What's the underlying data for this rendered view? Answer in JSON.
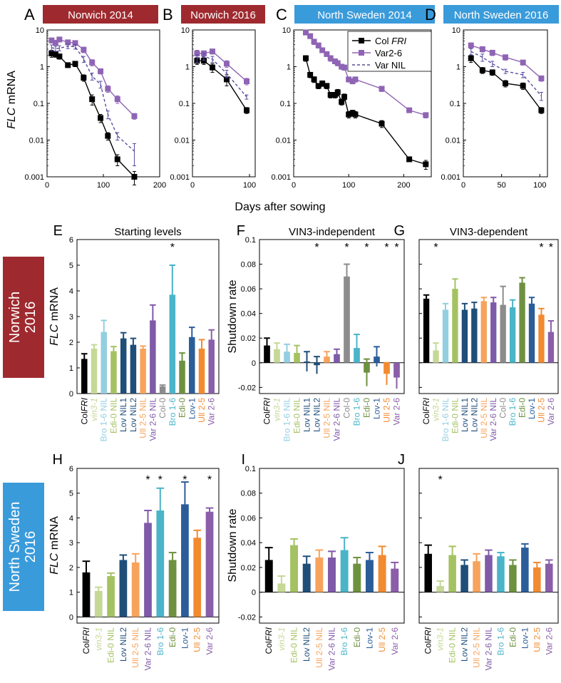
{
  "colors": {
    "dark_red": "#9e2a2f",
    "blue": "#3a9bdb",
    "black": "#000000",
    "col_fri": "#000000",
    "var26": "#8f64b5",
    "varnil": "#5a4b9e",
    "vin3": "#c5d896",
    "bro16nil": "#93cfe0",
    "edi0nil": "#a5c263",
    "lovnil": "#1f4e79",
    "ull25nil": "#f7a35c",
    "var26nil": "#7f5aa8",
    "col0": "#8c8c8c",
    "bro16": "#4ab4c9",
    "edi0": "#6e9140",
    "lov1": "#2b5d99",
    "ull25": "#f28a30",
    "var26bar": "#8a5ea9"
  },
  "panels_top": [
    {
      "id": "A",
      "header": "Norwich 2014",
      "header_color": "dark_red"
    },
    {
      "id": "B",
      "header": "Norwich 2016",
      "header_color": "dark_red"
    },
    {
      "id": "C",
      "header": "North Sweden 2014",
      "header_color": "blue"
    },
    {
      "id": "D",
      "header": "North Sweden 2016",
      "header_color": "blue"
    }
  ],
  "row_labels": [
    {
      "text_line1": "Norwich",
      "text_line2": "2016",
      "color": "dark_red"
    },
    {
      "text_line1": "North Sweden",
      "text_line2": "2016",
      "color": "blue"
    }
  ],
  "shared": {
    "x_axis_label": "Days after sowing",
    "y_axis_label_italic": "FLC",
    "y_axis_label_rest": " mRNA",
    "shutdown_label": "Shutdown rate",
    "asterisk": "*",
    "legend": [
      {
        "label_plain": "Col ",
        "label_italic": "FRI",
        "style": "solid-square",
        "color": "col_fri"
      },
      {
        "label_plain": "Var2-6",
        "label_italic": "",
        "style": "solid-square",
        "color": "var26"
      },
      {
        "label_plain": "Var NIL",
        "label_italic": "",
        "style": "dashed",
        "color": "varnil"
      }
    ]
  },
  "chart_data": [
    {
      "panel": "A",
      "type": "line",
      "title": "Norwich 2014",
      "xlabel": "Days after sowing",
      "ylabel": "FLC mRNA",
      "yscale": "log",
      "xlim": [
        0,
        200
      ],
      "xticks": [
        0,
        100,
        200
      ],
      "ylim": [
        0.001,
        10
      ],
      "yticks": [
        0.001,
        0.01,
        0.1,
        1,
        10
      ],
      "ytick_labels": [
        "0.001",
        "0.01",
        "0.1",
        "1",
        "10"
      ],
      "series": [
        {
          "name": "Col FRI",
          "x": [
            8,
            15,
            22,
            37,
            50,
            65,
            80,
            95,
            108,
            125,
            155
          ],
          "y": [
            2.3,
            2.2,
            1.9,
            1.1,
            1.2,
            0.5,
            0.13,
            0.04,
            0.013,
            0.003,
            0.001
          ],
          "err": [
            0.5,
            0.4,
            0.3,
            0.15,
            0.2,
            0.1,
            0.04,
            0.01,
            0.003,
            0.001,
            0.0004
          ]
        },
        {
          "name": "Var2-6",
          "x": [
            8,
            15,
            22,
            37,
            50,
            65,
            80,
            95,
            108,
            125,
            155
          ],
          "y": [
            5.2,
            4.5,
            5.5,
            4.6,
            4.4,
            2.9,
            1.3,
            0.75,
            0.25,
            0.13,
            0.045
          ],
          "err": [
            0.8,
            0.7,
            0.8,
            0.6,
            0.6,
            0.5,
            0.25,
            0.12,
            0.05,
            0.03,
            0.008
          ]
        },
        {
          "name": "Var NIL",
          "x": [
            8,
            15,
            22,
            37,
            50,
            65,
            80,
            95,
            108,
            125,
            155
          ],
          "y": [
            3.3,
            3.1,
            3.2,
            3.6,
            3.5,
            1.6,
            0.55,
            0.33,
            0.05,
            0.013,
            0.005
          ],
          "err": [
            0.6,
            0.5,
            0.5,
            0.5,
            0.5,
            0.3,
            0.12,
            0.07,
            0.012,
            0.003,
            0.003
          ]
        }
      ]
    },
    {
      "panel": "B",
      "type": "line",
      "title": "Norwich 2016",
      "xlabel": "Days after sowing",
      "ylabel": "FLC mRNA",
      "yscale": "log",
      "xlim": [
        0,
        110
      ],
      "xticks": [
        0,
        100
      ],
      "ylim": [
        0.001,
        10
      ],
      "yticks": [
        0.001,
        0.01,
        0.1,
        1,
        10
      ],
      "ytick_labels": [
        "0.001",
        "0.01",
        "0.1",
        "1",
        "10"
      ],
      "series": [
        {
          "name": "Col FRI",
          "x": [
            8,
            20,
            35,
            60,
            95
          ],
          "y": [
            1.45,
            1.45,
            0.95,
            0.45,
            0.065
          ],
          "err": [
            0.3,
            0.3,
            0.25,
            0.15,
            0.012
          ]
        },
        {
          "name": "Var2-6",
          "x": [
            8,
            20,
            35,
            60,
            95
          ],
          "y": [
            2.3,
            2.3,
            2.6,
            1.2,
            0.4
          ],
          "err": [
            0.5,
            0.4,
            0.4,
            0.25,
            0.08
          ]
        },
        {
          "name": "Var NIL",
          "x": [
            8,
            20,
            35,
            60,
            95
          ],
          "y": [
            1.7,
            1.9,
            1.6,
            0.65,
            0.15
          ],
          "err": [
            0.4,
            0.4,
            0.3,
            0.15,
            0.02
          ]
        }
      ]
    },
    {
      "panel": "C",
      "type": "line",
      "title": "North Sweden 2014",
      "xlabel": "Days after sowing",
      "ylabel": "FLC mRNA",
      "yscale": "log",
      "xlim": [
        0,
        250
      ],
      "xticks": [
        0,
        100,
        200
      ],
      "ylim": [
        0.001,
        10
      ],
      "yticks": [
        0.001,
        0.01,
        0.1,
        1,
        10
      ],
      "ytick_labels": [
        "0.001",
        "0.01",
        "0.1",
        "1",
        "10"
      ],
      "series": [
        {
          "name": "Col FRI",
          "x": [
            22,
            30,
            37,
            45,
            52,
            60,
            67,
            75,
            80,
            87,
            92,
            100,
            107,
            112,
            160,
            210,
            240
          ],
          "y": [
            1.7,
            0.6,
            0.45,
            0.3,
            0.35,
            0.3,
            0.17,
            0.17,
            0.2,
            0.11,
            0.15,
            0.05,
            0.055,
            0.05,
            0.028,
            0.003,
            0.0022
          ],
          "err": [
            0.3,
            0.1,
            0.08,
            0.05,
            0.06,
            0.05,
            0.03,
            0.03,
            0.04,
            0.02,
            0.03,
            0.01,
            0.01,
            0.01,
            0.006,
            0.0004,
            0.0006
          ]
        },
        {
          "name": "Var2-6",
          "x": [
            22,
            30,
            37,
            45,
            52,
            60,
            67,
            75,
            80,
            87,
            92,
            100,
            107,
            112,
            160,
            210,
            240
          ],
          "y": [
            8.5,
            6.8,
            4.8,
            3.8,
            2.8,
            2.2,
            1.7,
            1.4,
            1.25,
            1.0,
            0.95,
            0.45,
            0.4,
            0.45,
            0.25,
            0.065,
            0.048
          ],
          "err": [
            1,
            1,
            0.8,
            0.6,
            0.4,
            0.3,
            0.3,
            0.2,
            0.2,
            0.15,
            0.15,
            0.07,
            0.06,
            0.07,
            0.04,
            0.008,
            0.008
          ]
        }
      ]
    },
    {
      "panel": "D",
      "type": "line",
      "title": "North Sweden 2016",
      "xlabel": "Days after sowing",
      "ylabel": "FLC mRNA",
      "yscale": "log",
      "xlim": [
        0,
        110
      ],
      "xticks": [
        0,
        50,
        100
      ],
      "ylim": [
        0.001,
        10
      ],
      "yticks": [
        0.001,
        0.01,
        0.1,
        1,
        10
      ],
      "ytick_labels": [
        "0.001",
        "0.01",
        "0.1",
        "1",
        "10"
      ],
      "series": [
        {
          "name": "Col FRI",
          "x": [
            10,
            25,
            38,
            55,
            78,
            102
          ],
          "y": [
            1.7,
            0.8,
            0.7,
            0.35,
            0.3,
            0.065
          ],
          "err": [
            0.4,
            0.15,
            0.12,
            0.07,
            0.06,
            0.012
          ]
        },
        {
          "name": "Var2-6",
          "x": [
            10,
            25,
            38,
            55,
            78,
            102
          ],
          "y": [
            3.8,
            3.0,
            2.4,
            1.8,
            1.3,
            0.48
          ],
          "err": [
            0.6,
            0.5,
            0.4,
            0.3,
            0.2,
            0.08
          ]
        },
        {
          "name": "Var NIL",
          "x": [
            10,
            25,
            38,
            55,
            78,
            102
          ],
          "y": [
            2.6,
            1.8,
            1.2,
            0.75,
            0.6,
            0.16
          ],
          "err": [
            0.5,
            0.4,
            0.2,
            0.1,
            0.1,
            0.04
          ]
        }
      ]
    },
    {
      "panel": "E",
      "type": "bar",
      "title": "Starting levels",
      "ylabel": "FLC mRNA",
      "ylim": [
        0,
        6
      ],
      "yticks": [
        0,
        1,
        2,
        3,
        4,
        5,
        6
      ],
      "ytick_labels": [
        "0",
        "1",
        "2",
        "3",
        "4",
        "5",
        "6"
      ],
      "categories": [
        "ColFRI",
        "vin3-1",
        "Bro 1-6 NIL",
        "Edi-0 NIL",
        "Lov NIL1",
        "Lov NIL2",
        "Ull 2-5 NIL",
        "Var 2-6 NIL",
        "Col-0",
        "Bro 1-6",
        "Edi-0",
        "Lov-1",
        "Ull 2-5",
        "Var 2-6"
      ],
      "colors": [
        "col_fri",
        "vin3",
        "bro16nil",
        "edi0nil",
        "lovnil",
        "lovnil",
        "ull25nil",
        "var26nil",
        "col0",
        "bro16",
        "edi0",
        "lov1",
        "ull25",
        "var26bar"
      ],
      "values": [
        1.35,
        1.75,
        2.4,
        1.65,
        2.15,
        1.9,
        1.75,
        2.85,
        0.28,
        3.85,
        1.28,
        2.2,
        1.75,
        2.1
      ],
      "err": [
        0.2,
        0.15,
        0.45,
        0.18,
        0.22,
        0.25,
        0.1,
        0.6,
        0.05,
        1.15,
        0.3,
        0.38,
        0.35,
        0.38
      ],
      "star": [
        false,
        false,
        false,
        false,
        false,
        false,
        false,
        false,
        false,
        true,
        false,
        false,
        false,
        false
      ]
    },
    {
      "panel": "F",
      "type": "bar",
      "title": "VIN3-independent",
      "ylabel": "Shutdown rate",
      "ylim": [
        -0.025,
        0.1
      ],
      "yticks": [
        -0.02,
        0,
        0.02,
        0.04,
        0.06,
        0.08,
        0.1
      ],
      "ytick_labels": [
        "-0.02",
        "0",
        "0.02",
        "0.04",
        "0.06",
        "0.08",
        "0.1"
      ],
      "categories": [
        "ColFRI",
        "vin3-1",
        "Bro 1-6 NIL",
        "Edi-0 NIL",
        "Lov NIL1",
        "Lov NIL2",
        "Ull 2-5 NIL",
        "Var 2-6 NIL",
        "Col-0",
        "Bro 1-6",
        "Edi-0",
        "Lov-1",
        "Ull 2-5",
        "Var 2-6"
      ],
      "colors": [
        "col_fri",
        "vin3",
        "bro16nil",
        "edi0nil",
        "lovnil",
        "lovnil",
        "ull25nil",
        "var26nil",
        "col0",
        "bro16",
        "edi0",
        "lov1",
        "ull25",
        "var26bar"
      ],
      "values": [
        0.014,
        0.011,
        0.009,
        0.008,
        0.001,
        -0.002,
        0.005,
        0.007,
        0.07,
        0.012,
        -0.008,
        0.005,
        -0.009,
        -0.012
      ],
      "err": [
        0.006,
        0.005,
        0.006,
        0.006,
        0.008,
        0.007,
        0.004,
        0.004,
        0.01,
        0.011,
        0.011,
        0.008,
        0.009,
        0.009
      ],
      "star": [
        false,
        false,
        false,
        false,
        false,
        true,
        false,
        false,
        true,
        false,
        true,
        false,
        true,
        true
      ]
    },
    {
      "panel": "G",
      "type": "bar",
      "title": "VIN3-dependent",
      "ylim": [
        -0.025,
        0.1
      ],
      "yticks": [
        -0.02,
        0,
        0.02,
        0.04,
        0.06,
        0.08,
        0.1
      ],
      "categories": [
        "ColFRI",
        "vin3-1",
        "Bro 1-6 NIL",
        "Edi-0 NIL",
        "Lov NIL1",
        "Lov NIL2",
        "Ull 2-5 NIL",
        "Var 2-6 NIL",
        "Col-0",
        "Bro 1-6",
        "Edi-0",
        "Lov-1",
        "Ull 2-5",
        "Var 2-6"
      ],
      "colors": [
        "col_fri",
        "vin3",
        "bro16nil",
        "edi0nil",
        "lovnil",
        "lovnil",
        "ull25nil",
        "var26nil",
        "col0",
        "bro16",
        "edi0",
        "lov1",
        "ull25",
        "var26bar"
      ],
      "values": [
        0.052,
        0.01,
        0.043,
        0.06,
        0.043,
        0.044,
        0.05,
        0.049,
        0.047,
        0.045,
        0.065,
        0.048,
        0.039,
        0.025
      ],
      "err": [
        0.003,
        0.006,
        0.005,
        0.008,
        0.005,
        0.005,
        0.003,
        0.004,
        0.015,
        0.006,
        0.004,
        0.005,
        0.005,
        0.009
      ],
      "star": [
        false,
        true,
        false,
        false,
        false,
        false,
        false,
        false,
        false,
        false,
        false,
        false,
        true,
        true
      ]
    },
    {
      "panel": "H",
      "type": "bar",
      "ylabel": "FLC mRNA",
      "ylim": [
        -0.25,
        6
      ],
      "yticks": [
        0,
        1,
        2,
        3,
        4,
        5,
        6
      ],
      "ytick_labels": [
        "0",
        "1",
        "2",
        "3",
        "4",
        "5",
        "6"
      ],
      "categories": [
        "ColFRI",
        "vin3-1",
        "Edi-0 NIL",
        "Lov NIL2",
        "Ull 2-5 NIL",
        "Var 2-6 NIL",
        "Bro 1-6",
        "Edi-0",
        "Lov-1",
        "Ull 2-5",
        "Var 2-6"
      ],
      "colors": [
        "col_fri",
        "vin3",
        "edi0nil",
        "lovnil",
        "ull25nil",
        "var26nil",
        "bro16",
        "edi0",
        "lov1",
        "ull25",
        "var26bar"
      ],
      "values": [
        1.8,
        1.05,
        1.65,
        2.3,
        2.2,
        3.8,
        4.3,
        2.3,
        4.55,
        3.2,
        4.25
      ],
      "err": [
        0.45,
        0.15,
        0.12,
        0.2,
        0.35,
        0.5,
        0.9,
        0.3,
        0.9,
        0.3,
        0.15
      ],
      "star": [
        false,
        false,
        false,
        false,
        false,
        true,
        true,
        false,
        true,
        false,
        true
      ]
    },
    {
      "panel": "I",
      "type": "bar",
      "ylabel": "Shutdown rate",
      "ylim": [
        -0.025,
        0.1
      ],
      "yticks": [
        -0.02,
        0,
        0.02,
        0.04,
        0.06,
        0.08,
        0.1
      ],
      "ytick_labels": [
        "-0.02",
        "0",
        "0.02",
        "0.04",
        "0.06",
        "0.08",
        "0.1"
      ],
      "categories": [
        "ColFRI",
        "vin3-1",
        "Edi-0 NIL",
        "Lov NIL2",
        "Ull 2-5 NIL",
        "Var 2-6 NIL",
        "Bro 1-6",
        "Edi-0",
        "Lov-1",
        "Ull 2-5",
        "Var 2-6"
      ],
      "colors": [
        "col_fri",
        "vin3",
        "edi0nil",
        "lovnil",
        "ull25nil",
        "var26nil",
        "bro16",
        "edi0",
        "lov1",
        "ull25",
        "var26bar"
      ],
      "values": [
        0.026,
        0.007,
        0.038,
        0.023,
        0.028,
        0.028,
        0.034,
        0.023,
        0.026,
        0.03,
        0.019
      ],
      "err": [
        0.01,
        0.006,
        0.005,
        0.006,
        0.006,
        0.005,
        0.01,
        0.005,
        0.006,
        0.007,
        0.005
      ],
      "star": [
        false,
        false,
        false,
        false,
        false,
        false,
        false,
        false,
        false,
        false,
        false
      ]
    },
    {
      "panel": "J",
      "type": "bar",
      "ylim": [
        -0.025,
        0.1
      ],
      "yticks": [
        -0.02,
        0,
        0.02,
        0.04,
        0.06,
        0.08,
        0.1
      ],
      "categories": [
        "ColFRI",
        "vin3-1",
        "Edi-0 NIL",
        "Lov NIL2",
        "Ull 2-5 NIL",
        "Var 2-6 NIL",
        "Bro 1-6",
        "Edi-0",
        "Lov-1",
        "Ull 2-5",
        "Var 2-6"
      ],
      "colors": [
        "col_fri",
        "vin3",
        "edi0nil",
        "lovnil",
        "ull25nil",
        "var26nil",
        "bro16",
        "edi0",
        "lov1",
        "ull25",
        "var26bar"
      ],
      "values": [
        0.031,
        0.005,
        0.03,
        0.022,
        0.025,
        0.03,
        0.029,
        0.022,
        0.036,
        0.02,
        0.023
      ],
      "err": [
        0.007,
        0.004,
        0.007,
        0.004,
        0.006,
        0.004,
        0.003,
        0.004,
        0.003,
        0.004,
        0.003
      ],
      "star": [
        false,
        true,
        false,
        false,
        false,
        false,
        false,
        false,
        false,
        false,
        false
      ]
    }
  ]
}
